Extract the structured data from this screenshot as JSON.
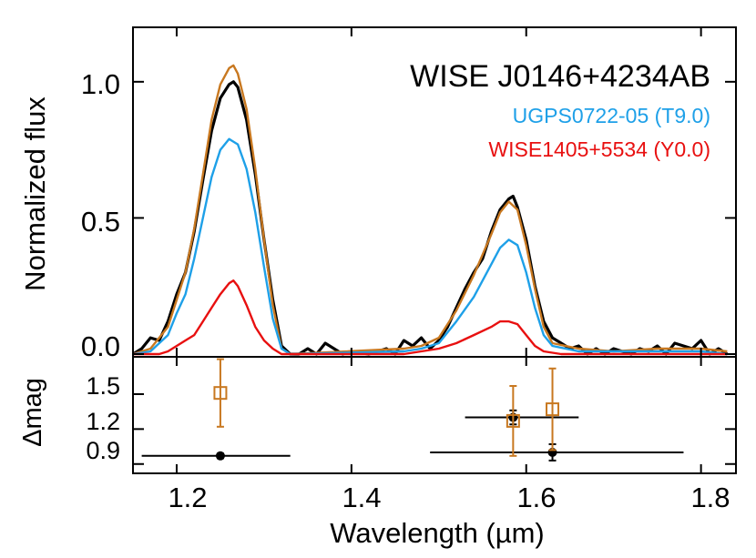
{
  "chart_data": [
    {
      "type": "line",
      "title": "WISE J0146+4234AB",
      "xlabel": "",
      "ylabel": "Normalized flux",
      "xlim": [
        1.15,
        1.84
      ],
      "ylim": [
        -0.01,
        1.2
      ],
      "xticks": [
        1.2,
        1.4,
        1.6,
        1.8
      ],
      "yticks": [
        0.0,
        0.5,
        1.0
      ],
      "ytick_labels": [
        "0.0",
        "0.5",
        "1.0"
      ],
      "legend_position": "top-right",
      "series": [
        {
          "name": "WISE J0146+4234AB",
          "color": "#000000",
          "points": [
            [
              1.15,
              0.0
            ],
            [
              1.16,
              0.02
            ],
            [
              1.17,
              0.06
            ],
            [
              1.18,
              0.05
            ],
            [
              1.19,
              0.12
            ],
            [
              1.2,
              0.22
            ],
            [
              1.21,
              0.3
            ],
            [
              1.22,
              0.45
            ],
            [
              1.23,
              0.64
            ],
            [
              1.24,
              0.82
            ],
            [
              1.25,
              0.94
            ],
            [
              1.26,
              0.99
            ],
            [
              1.265,
              1.0
            ],
            [
              1.27,
              0.98
            ],
            [
              1.28,
              0.86
            ],
            [
              1.29,
              0.66
            ],
            [
              1.3,
              0.42
            ],
            [
              1.31,
              0.2
            ],
            [
              1.32,
              0.03
            ],
            [
              1.33,
              0.0
            ],
            [
              1.34,
              0.0
            ],
            [
              1.35,
              0.02
            ],
            [
              1.36,
              0.0
            ],
            [
              1.37,
              0.04
            ],
            [
              1.38,
              0.02
            ],
            [
              1.39,
              0.0
            ],
            [
              1.4,
              0.01
            ],
            [
              1.42,
              0.0
            ],
            [
              1.44,
              0.02
            ],
            [
              1.45,
              0.0
            ],
            [
              1.46,
              0.05
            ],
            [
              1.47,
              0.03
            ],
            [
              1.48,
              0.06
            ],
            [
              1.49,
              0.02
            ],
            [
              1.5,
              0.05
            ],
            [
              1.51,
              0.1
            ],
            [
              1.52,
              0.17
            ],
            [
              1.53,
              0.24
            ],
            [
              1.54,
              0.3
            ],
            [
              1.55,
              0.35
            ],
            [
              1.56,
              0.45
            ],
            [
              1.57,
              0.53
            ],
            [
              1.58,
              0.57
            ],
            [
              1.585,
              0.58
            ],
            [
              1.59,
              0.54
            ],
            [
              1.6,
              0.42
            ],
            [
              1.61,
              0.25
            ],
            [
              1.62,
              0.12
            ],
            [
              1.63,
              0.06
            ],
            [
              1.64,
              0.04
            ],
            [
              1.65,
              0.02
            ],
            [
              1.66,
              0.03
            ],
            [
              1.67,
              0.0
            ],
            [
              1.68,
              0.02
            ],
            [
              1.69,
              0.0
            ],
            [
              1.7,
              0.02
            ],
            [
              1.71,
              0.01
            ],
            [
              1.72,
              0.0
            ],
            [
              1.73,
              0.02
            ],
            [
              1.74,
              0.01
            ],
            [
              1.75,
              0.03
            ],
            [
              1.76,
              0.0
            ],
            [
              1.77,
              0.04
            ],
            [
              1.78,
              0.03
            ],
            [
              1.79,
              0.02
            ],
            [
              1.8,
              0.05
            ],
            [
              1.81,
              0.0
            ],
            [
              1.82,
              0.02
            ],
            [
              1.83,
              0.0
            ]
          ]
        },
        {
          "name": "",
          "color": "#c87820",
          "points": [
            [
              1.15,
              0.0
            ],
            [
              1.17,
              0.02
            ],
            [
              1.19,
              0.1
            ],
            [
              1.2,
              0.2
            ],
            [
              1.21,
              0.3
            ],
            [
              1.22,
              0.46
            ],
            [
              1.23,
              0.66
            ],
            [
              1.24,
              0.86
            ],
            [
              1.25,
              0.99
            ],
            [
              1.26,
              1.05
            ],
            [
              1.265,
              1.06
            ],
            [
              1.27,
              1.03
            ],
            [
              1.28,
              0.9
            ],
            [
              1.29,
              0.68
            ],
            [
              1.3,
              0.42
            ],
            [
              1.31,
              0.18
            ],
            [
              1.32,
              0.02
            ],
            [
              1.33,
              0.0
            ],
            [
              1.46,
              0.02
            ],
            [
              1.48,
              0.03
            ],
            [
              1.5,
              0.06
            ],
            [
              1.52,
              0.16
            ],
            [
              1.54,
              0.29
            ],
            [
              1.56,
              0.44
            ],
            [
              1.57,
              0.52
            ],
            [
              1.58,
              0.56
            ],
            [
              1.59,
              0.53
            ],
            [
              1.6,
              0.4
            ],
            [
              1.61,
              0.24
            ],
            [
              1.62,
              0.1
            ],
            [
              1.63,
              0.04
            ],
            [
              1.66,
              0.02
            ],
            [
              1.7,
              0.01
            ],
            [
              1.75,
              0.02
            ],
            [
              1.8,
              0.02
            ],
            [
              1.83,
              0.01
            ]
          ]
        },
        {
          "name": "UGPS0722-05 (T9.0)",
          "color": "#1ea0e8",
          "points": [
            [
              1.15,
              0.0
            ],
            [
              1.17,
              0.01
            ],
            [
              1.19,
              0.07
            ],
            [
              1.2,
              0.15
            ],
            [
              1.21,
              0.22
            ],
            [
              1.22,
              0.35
            ],
            [
              1.23,
              0.5
            ],
            [
              1.24,
              0.65
            ],
            [
              1.25,
              0.75
            ],
            [
              1.26,
              0.79
            ],
            [
              1.27,
              0.77
            ],
            [
              1.28,
              0.68
            ],
            [
              1.29,
              0.52
            ],
            [
              1.3,
              0.32
            ],
            [
              1.31,
              0.13
            ],
            [
              1.32,
              0.02
            ],
            [
              1.33,
              0.0
            ],
            [
              1.46,
              0.01
            ],
            [
              1.48,
              0.02
            ],
            [
              1.5,
              0.04
            ],
            [
              1.52,
              0.12
            ],
            [
              1.54,
              0.21
            ],
            [
              1.56,
              0.33
            ],
            [
              1.57,
              0.39
            ],
            [
              1.58,
              0.42
            ],
            [
              1.59,
              0.4
            ],
            [
              1.6,
              0.3
            ],
            [
              1.61,
              0.17
            ],
            [
              1.62,
              0.07
            ],
            [
              1.63,
              0.03
            ],
            [
              1.66,
              0.01
            ],
            [
              1.7,
              0.01
            ],
            [
              1.75,
              0.01
            ],
            [
              1.8,
              0.01
            ],
            [
              1.83,
              0.0
            ]
          ]
        },
        {
          "name": "WISE1405+5534 (Y0.0)",
          "color": "#e81010",
          "points": [
            [
              1.15,
              0.0
            ],
            [
              1.18,
              0.0
            ],
            [
              1.19,
              0.01
            ],
            [
              1.2,
              0.03
            ],
            [
              1.21,
              0.05
            ],
            [
              1.22,
              0.07
            ],
            [
              1.23,
              0.12
            ],
            [
              1.24,
              0.17
            ],
            [
              1.25,
              0.22
            ],
            [
              1.26,
              0.26
            ],
            [
              1.265,
              0.27
            ],
            [
              1.27,
              0.25
            ],
            [
              1.28,
              0.18
            ],
            [
              1.29,
              0.1
            ],
            [
              1.3,
              0.05
            ],
            [
              1.31,
              0.02
            ],
            [
              1.32,
              0.0
            ],
            [
              1.46,
              0.0
            ],
            [
              1.48,
              0.01
            ],
            [
              1.5,
              0.02
            ],
            [
              1.52,
              0.04
            ],
            [
              1.54,
              0.07
            ],
            [
              1.56,
              0.1
            ],
            [
              1.57,
              0.12
            ],
            [
              1.58,
              0.12
            ],
            [
              1.59,
              0.11
            ],
            [
              1.6,
              0.07
            ],
            [
              1.61,
              0.03
            ],
            [
              1.62,
              0.01
            ],
            [
              1.64,
              0.0
            ],
            [
              1.7,
              0.0
            ],
            [
              1.8,
              0.0
            ],
            [
              1.83,
              0.0
            ]
          ]
        }
      ]
    },
    {
      "type": "scatter",
      "xlabel": "Wavelength (µm)",
      "ylabel": "Δmag",
      "xlim": [
        1.15,
        1.84
      ],
      "ylim": [
        0.82,
        1.82
      ],
      "xticks": [
        1.2,
        1.4,
        1.6,
        1.8
      ],
      "xtick_labels": [
        "1.2",
        "1.4",
        "1.6",
        "1.8"
      ],
      "yticks": [
        0.9,
        1.2,
        1.5
      ],
      "ytick_labels": [
        "0.9",
        "1.2",
        "1.5"
      ],
      "series": [
        {
          "marker": "filled-circle",
          "color": "#000000",
          "points": [
            {
              "x": 1.25,
              "y": 0.97,
              "xerr_lo": 1.16,
              "xerr_hi": 1.33,
              "yerr": 0.02
            },
            {
              "x": 1.585,
              "y": 1.3,
              "xerr_lo": 1.53,
              "xerr_hi": 1.66,
              "yerr": 0.06
            },
            {
              "x": 1.63,
              "y": 1.0,
              "xerr_lo": 1.49,
              "xerr_hi": 1.78,
              "yerr": 0.07
            }
          ]
        },
        {
          "marker": "open-square",
          "color": "#c87820",
          "points": [
            {
              "x": 1.25,
              "y": 1.51,
              "yerr": 0.29
            },
            {
              "x": 1.585,
              "y": 1.27,
              "yerr": 0.3
            },
            {
              "x": 1.63,
              "y": 1.37,
              "yerr": 0.35
            }
          ]
        }
      ]
    }
  ]
}
